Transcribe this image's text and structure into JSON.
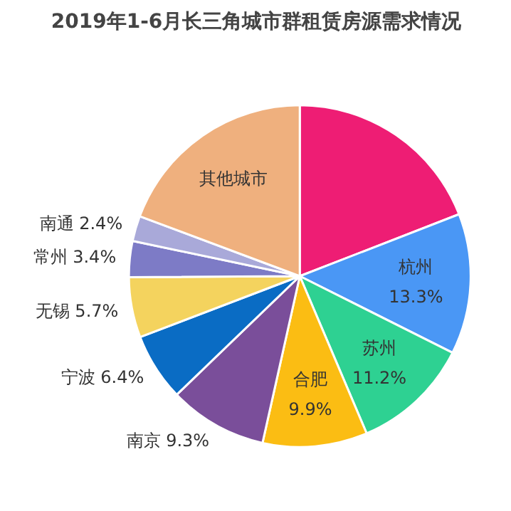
{
  "chart_data": {
    "type": "pie",
    "title": "2019年1-6月长三角城市群租赁房源需求情况",
    "categories": [
      null,
      "杭州",
      "苏州",
      "合肥",
      "南京",
      "宁波",
      "无锡",
      "常州",
      "南通",
      "其他城市"
    ],
    "values": [
      19.1,
      13.3,
      11.2,
      9.9,
      9.3,
      6.4,
      5.7,
      3.4,
      2.4,
      19.3
    ],
    "value_labels": [
      null,
      "13.3%",
      "11.2%",
      "9.9%",
      "9.3%",
      "6.4%",
      "5.7%",
      "3.4%",
      "2.4%",
      null
    ],
    "colors": [
      "#ee1d74",
      "#4a97f5",
      "#2ed192",
      "#fbbd13",
      "#7a4e9a",
      "#0a6cc4",
      "#f4d35e",
      "#7d7bc6",
      "#a9a9d9",
      "#efb07e"
    ]
  }
}
